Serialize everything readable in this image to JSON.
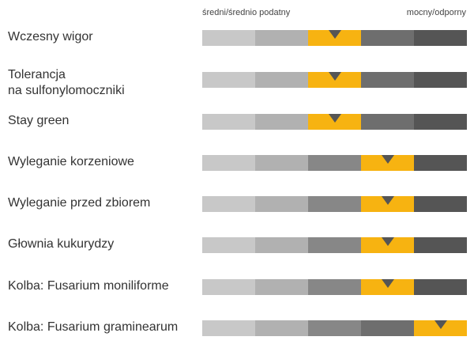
{
  "header": {
    "left_label": "średni/średnio podatny",
    "right_label": "mocny/odporny"
  },
  "colors": {
    "highlight": "#f7b311",
    "marker": "#555555",
    "scale": [
      "#c8c8c8",
      "#b1b1b1",
      "#878787",
      "#6e6e6e",
      "#555555"
    ]
  },
  "scale_steps": 5,
  "traits": [
    {
      "label": "Wczesny wigor",
      "level": 3
    },
    {
      "label": "Tolerancja\nna sulfonylomoczniki",
      "level": 3
    },
    {
      "label": "Stay green",
      "level": 3
    },
    {
      "label": "Wyleganie korzeniowe",
      "level": 4
    },
    {
      "label": "Wyleganie przed zbiorem",
      "level": 4
    },
    {
      "label": "Głownia kukurydzy",
      "level": 4
    },
    {
      "label": "Kolba: Fusarium moniliforme",
      "level": 4
    },
    {
      "label": "Kolba: Fusarium graminearum",
      "level": 5
    }
  ]
}
